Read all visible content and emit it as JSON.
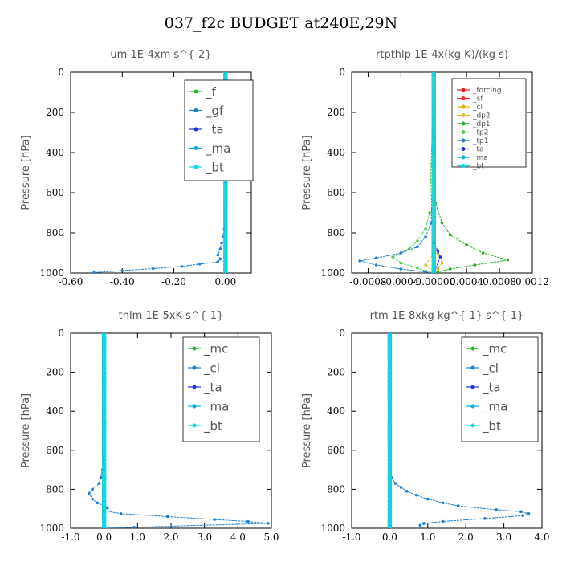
{
  "figure_title": "037_f2c  BUDGET at240E,29N",
  "chart_data": [
    {
      "id": "um",
      "type": "line",
      "title": "um   1E-4xm  s^{-2}",
      "ylabel": "Pressure [hPa]",
      "xlim": [
        -0.6,
        0.1
      ],
      "ylim": [
        1000,
        0
      ],
      "xticks": [
        "-0.60",
        "-0.40",
        "-0.20",
        "0.00"
      ],
      "xtick_values": [
        -0.6,
        -0.4,
        -0.2,
        0.0
      ],
      "yticks": [
        "0",
        "200",
        "400",
        "600",
        "800",
        "1000"
      ],
      "legend": [
        "_f",
        "_gf",
        "_ta",
        "_ma",
        "_bt"
      ],
      "series": [
        {
          "name": "_f",
          "color": "#22bb22",
          "x": [
            0,
            0
          ],
          "y": [
            0,
            1000
          ]
        },
        {
          "name": "_gf",
          "color": "#1e7fd0",
          "x": [
            0.0,
            0.0,
            0.0,
            -0.002,
            -0.005,
            -0.01,
            -0.015,
            -0.02,
            -0.03,
            -0.02,
            -0.03,
            -0.1,
            -0.17,
            -0.28,
            -0.4,
            -0.51
          ],
          "y": [
            0,
            550,
            700,
            740,
            780,
            820,
            850,
            880,
            910,
            930,
            945,
            955,
            967,
            978,
            988,
            998
          ]
        },
        {
          "name": "_ta",
          "color": "#2233dd",
          "x": [
            0,
            0
          ],
          "y": [
            0,
            1000
          ]
        },
        {
          "name": "_ma",
          "color": "#00b0e0",
          "x": [
            0,
            0
          ],
          "y": [
            0,
            1000
          ]
        },
        {
          "name": "_bt",
          "color": "#00e0e0",
          "x": [
            0,
            0
          ],
          "y": [
            0,
            1000
          ]
        }
      ]
    },
    {
      "id": "rtpthlp",
      "type": "line",
      "title": "rtpthlp  1E-4x(kg K)/(kg s)",
      "ylabel": "Pressure [hPa]",
      "xlim": [
        -0.001,
        0.0012
      ],
      "ylim": [
        1000,
        0
      ],
      "xticks": [
        "-0.0008",
        "-0.0004",
        "-0.00000",
        "0.0004",
        "0.0008",
        "0.0012"
      ],
      "xtick_values": [
        -0.0008,
        -0.0004,
        0.0,
        0.0004,
        0.0008,
        0.0012
      ],
      "yticks": [
        "0",
        "200",
        "400",
        "600",
        "800",
        "1000"
      ],
      "legend": [
        "_forcing",
        "_sf",
        "_cl",
        "_dp2",
        "_dp1",
        "_tp2",
        "_tp1",
        "_ta",
        "_ma",
        "_bt"
      ],
      "series": [
        {
          "name": "_forcing",
          "color": "#dd2222",
          "x": [
            0,
            0
          ],
          "y": [
            0,
            1000
          ]
        },
        {
          "name": "_sf",
          "color": "#ee3333",
          "x": [
            0,
            0
          ],
          "y": [
            0,
            1000
          ]
        },
        {
          "name": "_cl",
          "color": "#e0b000",
          "x": [
            0,
            0,
            5e-05,
            0.0001,
            5e-05,
            0
          ],
          "y": [
            0,
            850,
            900,
            950,
            980,
            1000
          ]
        },
        {
          "name": "_dp2",
          "color": "#d8c040",
          "x": [
            0,
            0,
            -0.0001,
            0,
            0
          ],
          "y": [
            0,
            900,
            960,
            990,
            1000
          ]
        },
        {
          "name": "_dp1",
          "color": "#20b020",
          "x": [
            0,
            2e-05,
            0.0001,
            0.0002,
            0.0004,
            0.0006,
            0.0009,
            0.0005,
            0.0002,
            5e-05,
            0
          ],
          "y": [
            0,
            650,
            750,
            810,
            860,
            900,
            935,
            960,
            980,
            995,
            1000
          ]
        },
        {
          "name": "_tp2",
          "color": "#55cc55",
          "x": [
            0,
            -5e-05,
            -0.0001,
            -0.0002,
            -0.0003,
            -0.0005,
            -0.0004,
            -0.0002,
            -0.0001,
            0
          ],
          "y": [
            0,
            700,
            780,
            840,
            880,
            920,
            950,
            975,
            990,
            1000
          ]
        },
        {
          "name": "_tp1",
          "color": "#1e7fd0",
          "x": [
            0,
            -3e-05,
            -0.0001,
            -0.0002,
            -0.0004,
            -0.0007,
            -0.0009,
            -0.0007,
            -0.0004,
            -0.0001,
            0
          ],
          "y": [
            0,
            750,
            820,
            870,
            900,
            925,
            940,
            960,
            980,
            995,
            1000
          ]
        },
        {
          "name": "_ta",
          "color": "#2233dd",
          "x": [
            0,
            0,
            5e-05,
            8e-05,
            0
          ],
          "y": [
            0,
            850,
            890,
            920,
            1000
          ]
        },
        {
          "name": "_ma",
          "color": "#00b0e0",
          "x": [
            0,
            0
          ],
          "y": [
            0,
            1000
          ]
        },
        {
          "name": "_bt",
          "color": "#00e0e0",
          "x": [
            0,
            0
          ],
          "y": [
            0,
            1000
          ]
        }
      ]
    },
    {
      "id": "thlm",
      "type": "line",
      "title": "thlm   1E-5xK  s^{-1}",
      "ylabel": "Pressure [hPa]",
      "xlim": [
        -1.0,
        5.0
      ],
      "ylim": [
        1000,
        0
      ],
      "xticks": [
        "-1.0",
        "0.0",
        "1.0",
        "2.0",
        "3.0",
        "4.0",
        "5.0"
      ],
      "xtick_values": [
        -1,
        0,
        1,
        2,
        3,
        4,
        5
      ],
      "yticks": [
        "0",
        "200",
        "400",
        "600",
        "800",
        "1000"
      ],
      "legend": [
        "_mc",
        "_cl",
        "_ta",
        "_ma",
        "_bt"
      ],
      "series": [
        {
          "name": "_mc",
          "color": "#22bb22",
          "x": [
            0,
            0
          ],
          "y": [
            0,
            1000
          ]
        },
        {
          "name": "_cl",
          "color": "#1e7fd0",
          "x": [
            0.0,
            0.0,
            -0.05,
            -0.1,
            -0.15,
            -0.35,
            -0.45,
            -0.35,
            -0.2,
            0.0,
            0.1,
            0.0,
            0.5,
            1.9,
            3.3,
            4.3,
            4.9,
            0.9,
            0.0
          ],
          "y": [
            0,
            600,
            700,
            740,
            770,
            800,
            820,
            850,
            870,
            885,
            895,
            910,
            925,
            940,
            955,
            965,
            975,
            995,
            1000
          ]
        },
        {
          "name": "_ta",
          "color": "#2233dd",
          "x": [
            0,
            0
          ],
          "y": [
            0,
            1000
          ]
        },
        {
          "name": "_ma",
          "color": "#00b0e0",
          "x": [
            0,
            0
          ],
          "y": [
            0,
            1000
          ]
        },
        {
          "name": "_bt",
          "color": "#00e0e0",
          "x": [
            0,
            0
          ],
          "y": [
            0,
            1000
          ]
        }
      ]
    },
    {
      "id": "rtm",
      "type": "line",
      "title": "rtm   1E-8xkg  kg^{-1}  s^{-1}",
      "ylabel": "Pressure [hPa]",
      "xlim": [
        -1.0,
        4.0
      ],
      "ylim": [
        1000,
        0
      ],
      "xticks": [
        "-1.0",
        "0.0",
        "1.0",
        "2.0",
        "3.0",
        "4.0"
      ],
      "xtick_values": [
        -1,
        0,
        1,
        2,
        3,
        4
      ],
      "yticks": [
        "0",
        "200",
        "400",
        "600",
        "800",
        "1000"
      ],
      "legend": [
        "_mc",
        "_cl",
        "_ta",
        "_ma",
        "_bt"
      ],
      "series": [
        {
          "name": "_mc",
          "color": "#22bb22",
          "x": [
            0,
            0
          ],
          "y": [
            0,
            1000
          ]
        },
        {
          "name": "_cl",
          "color": "#1e7fd0",
          "x": [
            0.0,
            0.0,
            0.05,
            0.15,
            0.3,
            0.45,
            0.7,
            1.0,
            1.4,
            1.8,
            2.8,
            3.45,
            3.65,
            3.5,
            2.5,
            1.4,
            0.9,
            0.8,
            0.85
          ],
          "y": [
            0,
            700,
            740,
            770,
            790,
            810,
            830,
            850,
            870,
            885,
            905,
            915,
            925,
            935,
            950,
            965,
            975,
            985,
            1000
          ]
        },
        {
          "name": "_ta",
          "color": "#2233dd",
          "x": [
            0,
            0
          ],
          "y": [
            0,
            1000
          ]
        },
        {
          "name": "_ma",
          "color": "#00b0e0",
          "x": [
            0,
            0
          ],
          "y": [
            0,
            1000
          ]
        },
        {
          "name": "_bt",
          "color": "#00e0e0",
          "x": [
            0,
            0
          ],
          "y": [
            0,
            1000
          ]
        }
      ]
    }
  ]
}
